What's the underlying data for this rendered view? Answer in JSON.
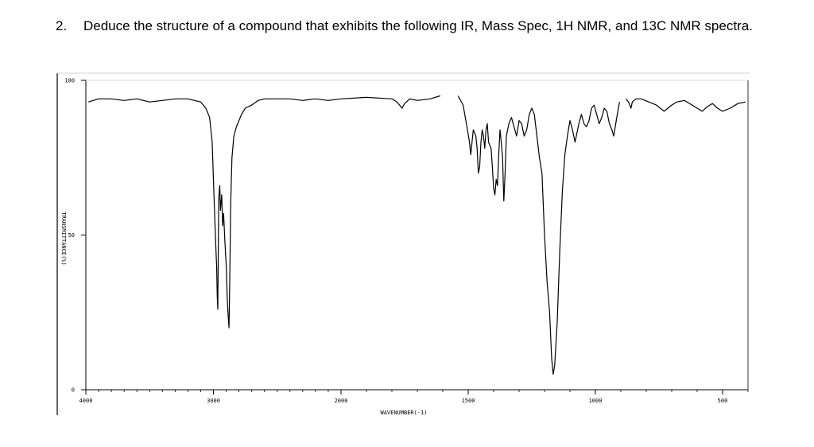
{
  "question": {
    "number": "2.",
    "text": "Deduce the structure of a compound that exhibits the following IR, Mass Spec, 1H NMR, and 13C NMR spectra."
  },
  "chart_data": {
    "type": "line",
    "title": "",
    "xlabel": "WAVENUMBER(-1)",
    "ylabel": "TRANSMITTANCE(%)",
    "xlim": [
      4000,
      400
    ],
    "ylim": [
      0,
      100
    ],
    "x_ticks": [
      "4000",
      "3000",
      "2000",
      "1500",
      "1000",
      "500"
    ],
    "y_ticks": [
      "100",
      "50",
      "0"
    ],
    "grid": false,
    "series": [
      {
        "name": "",
        "color": "#000000",
        "segments": [
          [
            [
              3980,
              93
            ],
            [
              3900,
              94
            ],
            [
              3800,
              94
            ],
            [
              3700,
              93.5
            ],
            [
              3600,
              94
            ],
            [
              3500,
              93
            ],
            [
              3400,
              93.5
            ],
            [
              3300,
              94
            ],
            [
              3200,
              94
            ],
            [
              3100,
              93
            ],
            [
              3060,
              91
            ],
            [
              3030,
              88
            ],
            [
              3010,
              80
            ],
            [
              3000,
              68
            ],
            [
              2990,
              56
            ],
            [
              2980,
              45
            ],
            [
              2975,
              40
            ],
            [
              2970,
              30
            ],
            [
              2966,
              26
            ],
            [
              2962,
              45
            ],
            [
              2958,
              62
            ],
            [
              2950,
              66
            ],
            [
              2945,
              58
            ],
            [
              2935,
              63
            ],
            [
              2928,
              53
            ],
            [
              2920,
              57
            ],
            [
              2910,
              48
            ],
            [
              2900,
              40
            ],
            [
              2892,
              30
            ],
            [
              2885,
              24
            ],
            [
              2878,
              20
            ],
            [
              2872,
              35
            ],
            [
              2865,
              60
            ],
            [
              2855,
              75
            ],
            [
              2840,
              82
            ],
            [
              2820,
              85
            ],
            [
              2800,
              87
            ],
            [
              2780,
              89
            ],
            [
              2750,
              91
            ],
            [
              2700,
              92
            ],
            [
              2650,
              93.5
            ],
            [
              2600,
              94
            ],
            [
              2500,
              94
            ],
            [
              2400,
              94
            ],
            [
              2300,
              93.5
            ],
            [
              2200,
              94
            ],
            [
              2100,
              93.5
            ],
            [
              2000,
              94
            ],
            [
              1900,
              94.5
            ],
            [
              1800,
              94
            ],
            [
              1780,
              93
            ],
            [
              1760,
              91
            ],
            [
              1750,
              92.5
            ],
            [
              1730,
              94
            ],
            [
              1700,
              93.5
            ],
            [
              1650,
              94
            ],
            [
              1610,
              95
            ]
          ],
          [
            [
              1540,
              95
            ],
            [
              1520,
              92
            ],
            [
              1505,
              85
            ],
            [
              1495,
              80
            ],
            [
              1490,
              76
            ],
            [
              1485,
              80
            ],
            [
              1480,
              84
            ],
            [
              1470,
              82
            ],
            [
              1465,
              78
            ],
            [
              1460,
              70
            ],
            [
              1455,
              72
            ],
            [
              1450,
              80
            ],
            [
              1445,
              84
            ],
            [
              1440,
              82
            ],
            [
              1435,
              78
            ],
            [
              1430,
              84
            ],
            [
              1425,
              86
            ],
            [
              1420,
              80
            ],
            [
              1410,
              78
            ],
            [
              1405,
              72
            ],
            [
              1400,
              65
            ],
            [
              1395,
              63
            ],
            [
              1390,
              68
            ],
            [
              1385,
              66
            ],
            [
              1380,
              76
            ],
            [
              1375,
              84
            ],
            [
              1370,
              80
            ],
            [
              1365,
              75
            ],
            [
              1360,
              61
            ],
            [
              1355,
              70
            ],
            [
              1350,
              82
            ],
            [
              1340,
              86
            ],
            [
              1330,
              88
            ],
            [
              1320,
              85
            ],
            [
              1310,
              82
            ],
            [
              1300,
              87
            ],
            [
              1290,
              86
            ],
            [
              1280,
              82
            ],
            [
              1270,
              84
            ],
            [
              1260,
              89
            ],
            [
              1250,
              91
            ],
            [
              1240,
              89
            ],
            [
              1230,
              82
            ],
            [
              1220,
              75
            ],
            [
              1210,
              70
            ],
            [
              1200,
              50
            ],
            [
              1190,
              35
            ],
            [
              1180,
              25
            ],
            [
              1172,
              10
            ],
            [
              1166,
              5
            ],
            [
              1160,
              8
            ],
            [
              1150,
              22
            ],
            [
              1140,
              45
            ],
            [
              1130,
              64
            ],
            [
              1120,
              76
            ],
            [
              1110,
              82
            ],
            [
              1100,
              87
            ],
            [
              1090,
              84
            ],
            [
              1080,
              80
            ],
            [
              1075,
              82
            ],
            [
              1065,
              86
            ],
            [
              1055,
              89
            ],
            [
              1045,
              86
            ],
            [
              1035,
              85
            ],
            [
              1025,
              87
            ],
            [
              1015,
              91
            ],
            [
              1005,
              92
            ],
            [
              995,
              89
            ],
            [
              985,
              86
            ],
            [
              975,
              88
            ],
            [
              965,
              91
            ],
            [
              955,
              90
            ],
            [
              945,
              86
            ],
            [
              935,
              84
            ],
            [
              928,
              82
            ],
            [
              920,
              86
            ],
            [
              912,
              90
            ],
            [
              905,
              93
            ]
          ],
          [
            [
              880,
              94
            ],
            [
              870,
              93
            ],
            [
              860,
              91
            ],
            [
              855,
              93
            ],
            [
              840,
              94
            ],
            [
              820,
              94
            ],
            [
              790,
              93
            ],
            [
              760,
              92
            ],
            [
              730,
              90
            ],
            [
              700,
              92
            ],
            [
              680,
              93
            ],
            [
              650,
              93.5
            ],
            [
              620,
              92
            ],
            [
              600,
              91
            ],
            [
              580,
              90
            ],
            [
              560,
              91.5
            ],
            [
              540,
              92.5
            ],
            [
              520,
              91
            ],
            [
              500,
              90
            ],
            [
              470,
              91
            ],
            [
              440,
              92.5
            ],
            [
              410,
              93
            ]
          ]
        ]
      }
    ]
  }
}
